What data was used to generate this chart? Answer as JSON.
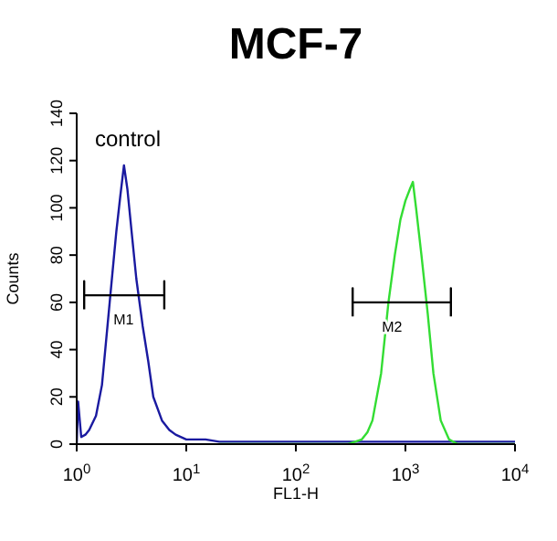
{
  "chart_data": {
    "type": "line",
    "title": "MCF-7",
    "xlabel": "FL1-H",
    "ylabel": "Counts",
    "log": "x",
    "xlim": [
      1,
      10000
    ],
    "xticks": [
      {
        "value": 1,
        "label": "10$^{0}$"
      },
      {
        "value": 10,
        "label": "10$^{1}$"
      },
      {
        "value": 100,
        "label": "10$^{2}$"
      },
      {
        "value": 1000,
        "label": "10$^{3}$"
      },
      {
        "value": 10000,
        "label": "10$^{4}$"
      }
    ],
    "ylim": [
      0,
      140
    ],
    "yticks": [
      0,
      20,
      40,
      60,
      80,
      100,
      120,
      140
    ],
    "grid": false,
    "legend": false,
    "marker": "none",
    "line_style": "solid",
    "series": [
      {
        "color": "#1a1aa0",
        "x": [
          1,
          1.03,
          1.1,
          1.2,
          1.3,
          1.5,
          1.7,
          2.0,
          2.3,
          2.5,
          2.7,
          2.9,
          3.2,
          3.5,
          4.0,
          4.5,
          5.0,
          6.0,
          7.0,
          8.0,
          10,
          15,
          20,
          40,
          100,
          300,
          1000,
          3000,
          10000
        ],
        "values": [
          0,
          18,
          3,
          4,
          6,
          12,
          25,
          60,
          90,
          105,
          118,
          108,
          88,
          70,
          50,
          35,
          20,
          10,
          6,
          4,
          2,
          2,
          1,
          1,
          1,
          1,
          1,
          1,
          1
        ]
      },
      {
        "color": "#33dd33",
        "x": [
          20,
          100,
          300,
          400,
          450,
          500,
          600,
          700,
          800,
          900,
          1000,
          1100,
          1170,
          1250,
          1400,
          1600,
          1800,
          2100,
          2500,
          3000,
          10000
        ],
        "values": [
          0,
          0,
          0,
          2,
          5,
          10,
          30,
          60,
          80,
          95,
          103,
          108,
          111,
          100,
          80,
          55,
          30,
          10,
          2,
          0,
          0
        ]
      },
      {
        "name": "M1",
        "color": "#000000",
        "x": [
          1.17,
          1.17,
          1.17,
          6.3,
          6.3,
          6.3
        ],
        "values": [
          57,
          69,
          63,
          63,
          69,
          57
        ]
      },
      {
        "name": "M2",
        "color": "#000000",
        "x": [
          330,
          330,
          330,
          2600,
          2600,
          2600
        ],
        "values": [
          54,
          66,
          60,
          60,
          66,
          54
        ]
      }
    ],
    "annotations": [
      "control"
    ]
  }
}
